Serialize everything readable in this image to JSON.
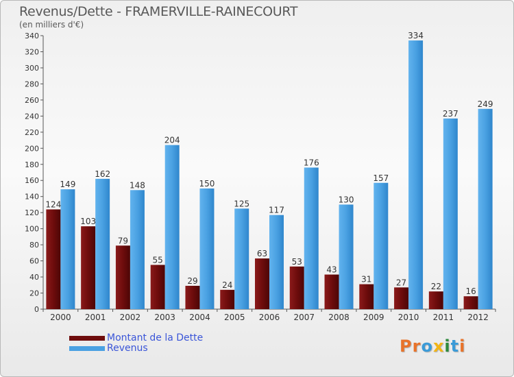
{
  "title": "Revenus/Dette - FRAMERVILLE-RAINECOURT",
  "subtitle": "(en milliers d'€)",
  "legend": {
    "debt_label": "Montant de la Dette",
    "revenue_label": "Revenus"
  },
  "logo": {
    "letters": [
      "P",
      "r",
      "o",
      "x",
      "i",
      "t",
      "i"
    ]
  },
  "colors": {
    "debt": "#6e0c0c",
    "revenue": "#4aa1e2",
    "axis_text": "#333333",
    "logo": [
      "#e8732a",
      "#e8732a",
      "#3b9bd8",
      "#f2b516",
      "#2d8a3d",
      "#3b9bd8",
      "#e8732a"
    ]
  },
  "chart_data": {
    "type": "bar",
    "categories": [
      "2000",
      "2001",
      "2002",
      "2003",
      "2004",
      "2005",
      "2006",
      "2007",
      "2008",
      "2009",
      "2010",
      "2011",
      "2012"
    ],
    "series": [
      {
        "name": "Montant de la Dette",
        "values": [
          124,
          103,
          79,
          55,
          29,
          24,
          63,
          53,
          43,
          31,
          27,
          22,
          16
        ]
      },
      {
        "name": "Revenus",
        "values": [
          149,
          162,
          148,
          204,
          150,
          125,
          117,
          176,
          130,
          157,
          334,
          237,
          249
        ]
      }
    ],
    "ylim": [
      0,
      340
    ],
    "yticks": [
      0,
      20,
      40,
      60,
      80,
      100,
      120,
      140,
      160,
      180,
      200,
      220,
      240,
      260,
      280,
      300,
      320,
      340
    ],
    "grid": false,
    "legend_position": "bottom-left"
  }
}
